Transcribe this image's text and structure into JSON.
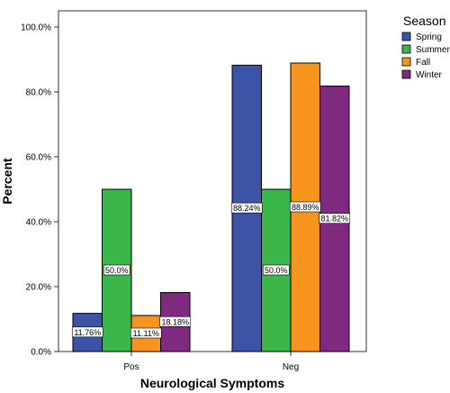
{
  "chart_data": {
    "type": "bar",
    "xlabel": "Neurological Symptoms",
    "ylabel": "Percent",
    "ylim": [
      0,
      100
    ],
    "yticks": [
      "0.0%",
      "20.0%",
      "40.0%",
      "60.0%",
      "80.0%",
      "100.0%"
    ],
    "categories": [
      "Pos",
      "Neg"
    ],
    "legend_title": "Season",
    "legend_position": "top-right",
    "series": [
      {
        "name": "Spring",
        "color": "#3d53a5",
        "values": [
          11.76,
          88.24
        ],
        "labels": [
          "11.76%",
          "88.24%"
        ]
      },
      {
        "name": "Summer",
        "color": "#3cb54a",
        "values": [
          50.0,
          50.0
        ],
        "labels": [
          "50.0%",
          "50.0%"
        ]
      },
      {
        "name": "Fall",
        "color": "#f7941d",
        "values": [
          11.11,
          88.89
        ],
        "labels": [
          "11.11%",
          "88.89%"
        ]
      },
      {
        "name": "Winter",
        "color": "#7f2a7f",
        "values": [
          18.18,
          81.82
        ],
        "labels": [
          "18.18%",
          "81.82%"
        ]
      }
    ]
  }
}
